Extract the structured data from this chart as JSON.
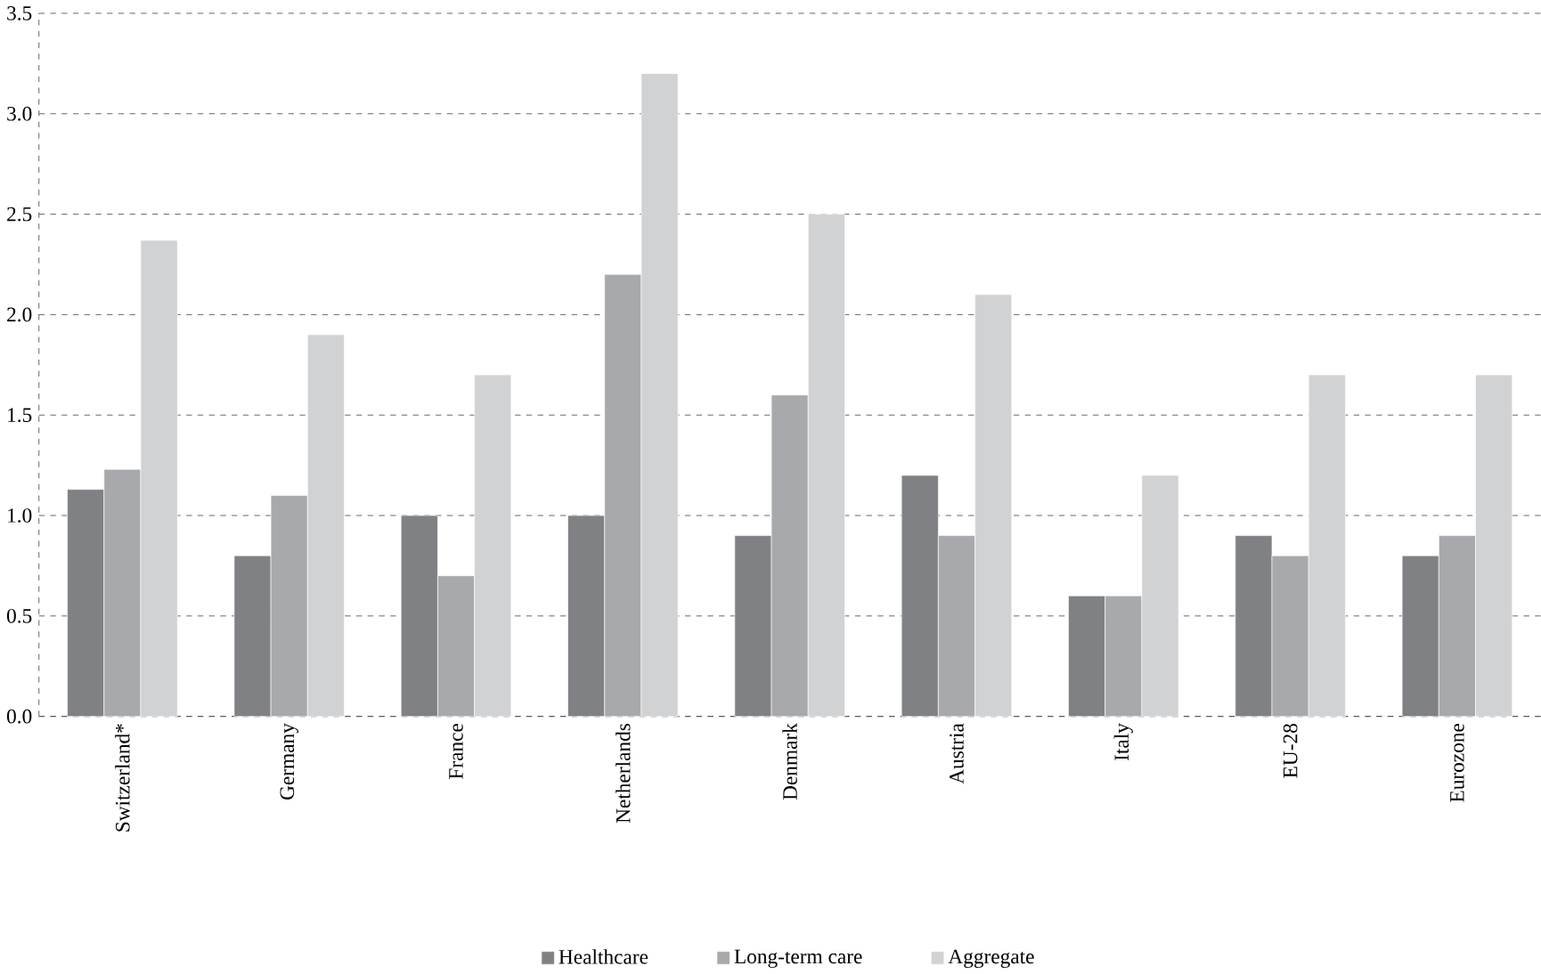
{
  "chart_data": {
    "type": "bar",
    "categories": [
      "Switzerland*",
      "Germany",
      "France",
      "Netherlands",
      "Denmark",
      "Austria",
      "Italy",
      "EU-28",
      "Eurozone"
    ],
    "series": [
      {
        "name": "Healthcare",
        "color": "#808185",
        "values": [
          1.13,
          0.8,
          1.0,
          1.0,
          0.9,
          1.2,
          0.6,
          0.9,
          0.8
        ]
      },
      {
        "name": "Long-term care",
        "color": "#a8a9ac",
        "values": [
          1.23,
          1.1,
          0.7,
          2.2,
          1.6,
          0.9,
          0.6,
          0.8,
          0.9
        ]
      },
      {
        "name": "Aggregate",
        "color": "#d1d2d4",
        "values": [
          2.37,
          1.9,
          1.7,
          3.2,
          2.5,
          2.1,
          1.2,
          1.7,
          1.7
        ]
      }
    ],
    "ylim": [
      0,
      3.5
    ],
    "yticks": [
      {
        "value": 0,
        "label": "0.0"
      },
      {
        "value": 0.5,
        "label": "0.5"
      },
      {
        "value": 1,
        "label": "1.0"
      },
      {
        "value": 1.5,
        "label": "1.5"
      },
      {
        "value": 2,
        "label": "2.0"
      },
      {
        "value": 2.5,
        "label": "2.5"
      },
      {
        "value": 3,
        "label": "3.0"
      },
      {
        "value": 3.5,
        "label": "3.5"
      }
    ],
    "grid": "y",
    "legend": "bottom"
  }
}
